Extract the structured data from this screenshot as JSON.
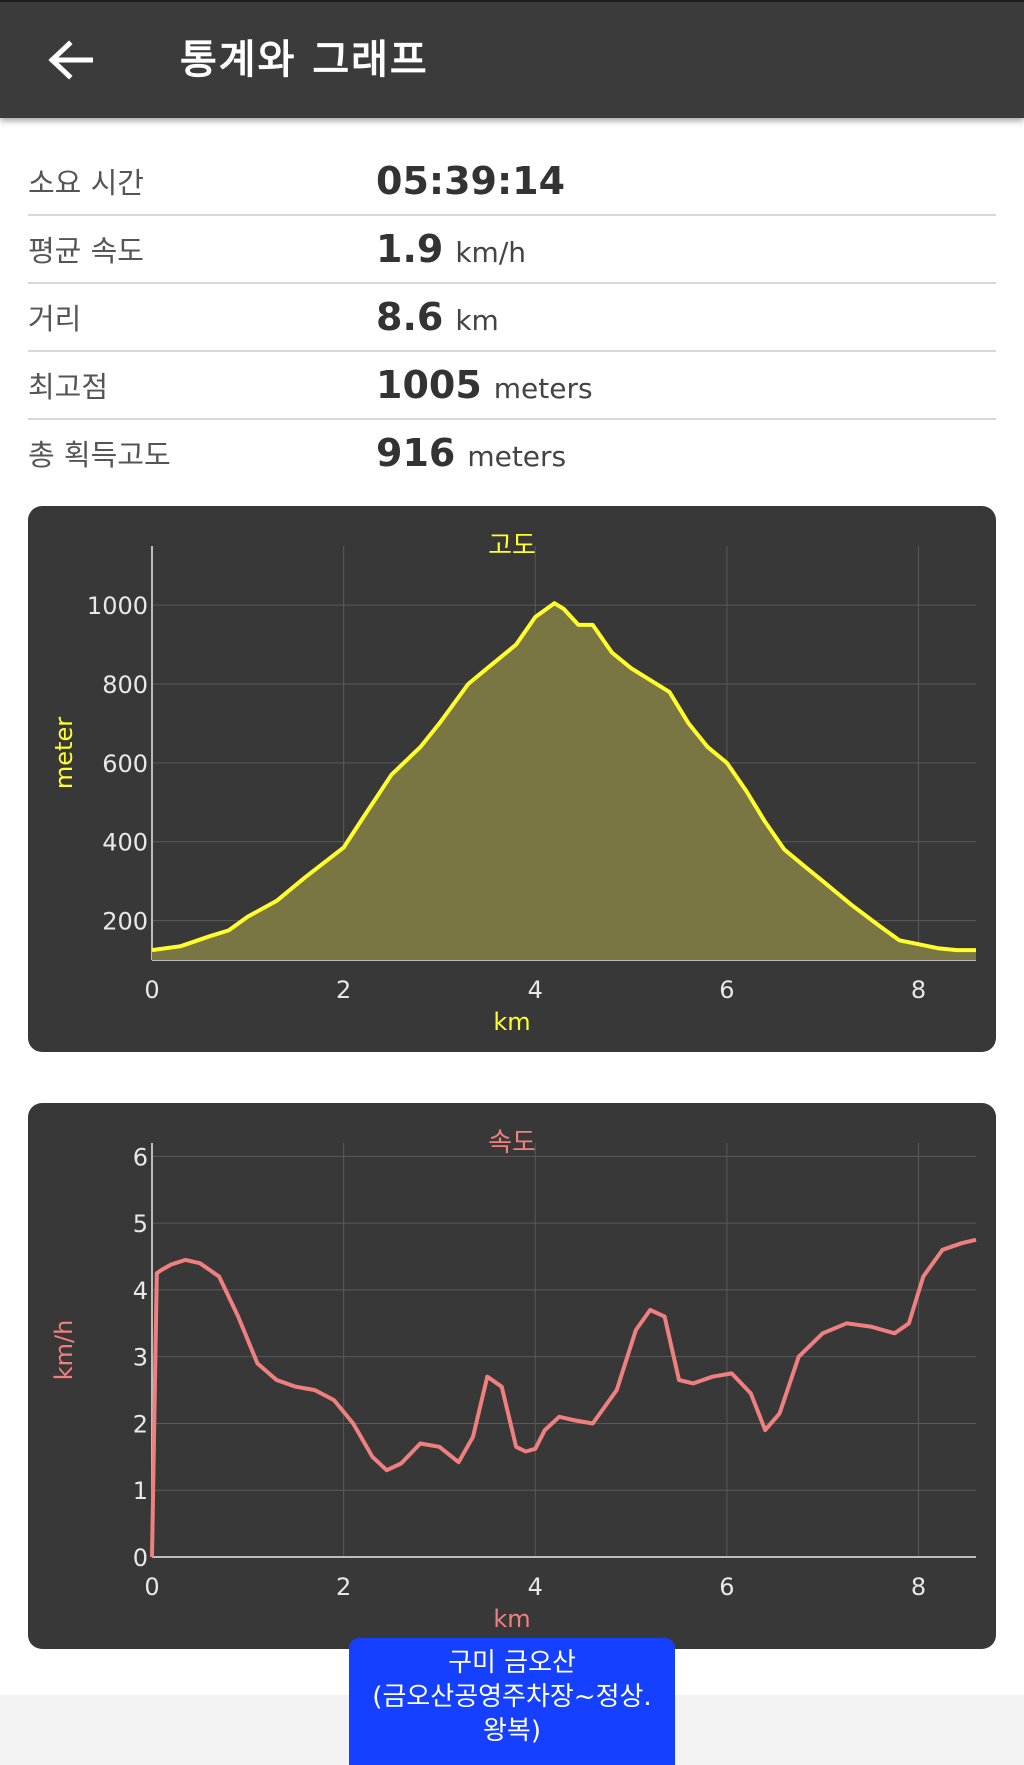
{
  "header": {
    "title": "통계와 그래프",
    "back_icon": "arrow-left-icon"
  },
  "stats": [
    {
      "label": "소요 시간",
      "value": "05:39:14",
      "unit": ""
    },
    {
      "label": "평균 속도",
      "value": "1.9",
      "unit": "km/h"
    },
    {
      "label": "거리",
      "value": "8.6",
      "unit": "km"
    },
    {
      "label": "최고점",
      "value": "1005",
      "unit": "meters"
    },
    {
      "label": "총 획득고도",
      "value": "916",
      "unit": "meters"
    }
  ],
  "toast": {
    "line1": "구미 금오산",
    "line2": "(금오산공영주차장~정상.",
    "line3": "왕복)"
  },
  "colors": {
    "elevation": "#ffff2e",
    "speed": "#f08080",
    "card": "#383838",
    "toast": "#1540ff"
  },
  "chart_data": [
    {
      "type": "area",
      "title": "고도",
      "xlabel": "km",
      "ylabel": "meter",
      "xlim": [
        0,
        8.6
      ],
      "ylim": [
        100,
        1150
      ],
      "xticks": [
        0,
        2,
        4,
        6,
        8
      ],
      "yticks": [
        200,
        400,
        600,
        800,
        1000
      ],
      "grid": true,
      "x": [
        0,
        0.3,
        0.6,
        0.8,
        1.0,
        1.3,
        1.6,
        2.0,
        2.2,
        2.5,
        2.8,
        3.0,
        3.3,
        3.5,
        3.8,
        4.0,
        4.2,
        4.3,
        4.45,
        4.6,
        4.8,
        5.0,
        5.2,
        5.4,
        5.6,
        5.8,
        6.0,
        6.2,
        6.4,
        6.6,
        6.8,
        7.0,
        7.3,
        7.6,
        7.8,
        8.0,
        8.2,
        8.4,
        8.6
      ],
      "y": [
        125,
        135,
        160,
        175,
        210,
        250,
        310,
        385,
        460,
        570,
        640,
        700,
        800,
        840,
        900,
        970,
        1005,
        990,
        950,
        950,
        880,
        840,
        810,
        780,
        700,
        640,
        600,
        530,
        450,
        380,
        340,
        300,
        240,
        185,
        150,
        140,
        130,
        125,
        125
      ]
    },
    {
      "type": "line",
      "title": "속도",
      "xlabel": "km",
      "ylabel": "km/h",
      "xlim": [
        0,
        8.6
      ],
      "ylim": [
        0,
        6.2
      ],
      "xticks": [
        0,
        2,
        4,
        6,
        8
      ],
      "yticks": [
        0,
        1,
        2,
        3,
        4,
        5,
        6
      ],
      "grid": true,
      "x": [
        0,
        0.05,
        0.1,
        0.2,
        0.35,
        0.5,
        0.7,
        0.9,
        1.1,
        1.3,
        1.5,
        1.7,
        1.9,
        2.1,
        2.3,
        2.45,
        2.6,
        2.8,
        3.0,
        3.2,
        3.35,
        3.5,
        3.65,
        3.8,
        3.9,
        4.0,
        4.1,
        4.25,
        4.4,
        4.6,
        4.85,
        5.05,
        5.2,
        5.35,
        5.5,
        5.65,
        5.85,
        6.05,
        6.25,
        6.4,
        6.55,
        6.75,
        7.0,
        7.25,
        7.5,
        7.75,
        7.9,
        8.05,
        8.25,
        8.45,
        8.6
      ],
      "y": [
        0,
        4.25,
        4.3,
        4.38,
        4.45,
        4.4,
        4.2,
        3.6,
        2.9,
        2.65,
        2.55,
        2.5,
        2.35,
        2.0,
        1.5,
        1.3,
        1.4,
        1.7,
        1.65,
        1.42,
        1.8,
        2.7,
        2.55,
        1.65,
        1.58,
        1.62,
        1.9,
        2.1,
        2.05,
        2.0,
        2.5,
        3.4,
        3.7,
        3.6,
        2.65,
        2.6,
        2.7,
        2.75,
        2.45,
        1.9,
        2.15,
        3.0,
        3.35,
        3.5,
        3.45,
        3.35,
        3.5,
        4.2,
        4.6,
        4.7,
        4.75
      ]
    }
  ]
}
